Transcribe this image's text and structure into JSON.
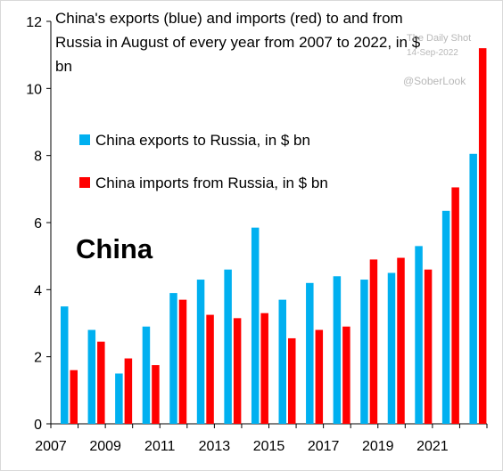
{
  "chart_data": {
    "type": "bar",
    "title": "China's exports (blue) and imports (red) to and from Russia in August of every year from 2007  to 2022, in $ bn",
    "xlabel": "",
    "ylabel": "",
    "ylim": [
      0,
      12
    ],
    "yticks": [
      "0",
      "2",
      "4",
      "6",
      "8",
      "10",
      "12"
    ],
    "categories": [
      "2007",
      "2008",
      "2009",
      "2010",
      "2011",
      "2012",
      "2013",
      "2014",
      "2015",
      "2016",
      "2017",
      "2018",
      "2019",
      "2020",
      "2021",
      "2022"
    ],
    "xtick_labels": [
      "2007",
      "2009",
      "2011",
      "2013",
      "2015",
      "2017",
      "2019",
      "2021"
    ],
    "series": [
      {
        "name": "China exports to Russia, in $ bn",
        "color": "#00b0f0",
        "values": [
          3.5,
          2.8,
          1.5,
          2.9,
          3.9,
          4.3,
          4.6,
          5.85,
          3.7,
          4.2,
          4.4,
          4.3,
          4.5,
          5.3,
          6.35,
          8.05
        ]
      },
      {
        "name": "China imports from Russia, in $ bn",
        "color": "#ff0000",
        "values": [
          1.6,
          2.45,
          1.95,
          1.75,
          3.7,
          3.25,
          3.15,
          3.3,
          2.55,
          2.8,
          2.9,
          4.9,
          4.95,
          4.6,
          7.05,
          11.2
        ]
      }
    ],
    "grid": false,
    "legend": "upper-left"
  },
  "annotations": {
    "country_label": "China",
    "watermark_source": "The Daily Shot",
    "watermark_date": "14-Sep-2022",
    "watermark_handle": "@SoberLook"
  }
}
